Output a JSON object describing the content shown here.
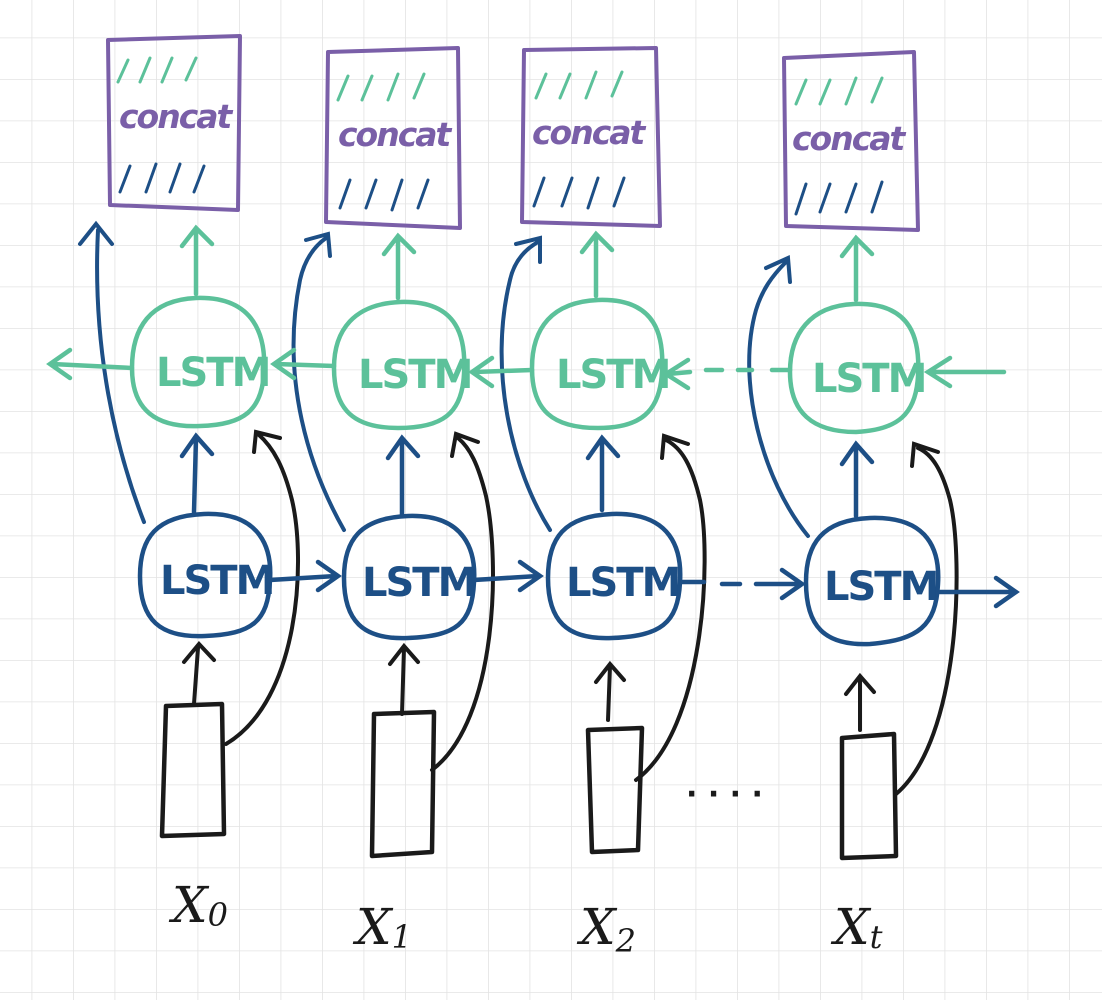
{
  "diagram": {
    "type": "bidirectional-lstm",
    "colors": {
      "forward": "#1d4f86",
      "backward": "#5cc19a",
      "concat": "#7a5fa8",
      "input": "#1a1a1a",
      "grid": "#e3e3e3"
    },
    "timesteps": [
      {
        "input_base": "X",
        "input_sub": "0",
        "forward_label": "LSTM",
        "backward_label": "LSTM",
        "concat_label": "concat"
      },
      {
        "input_base": "X",
        "input_sub": "1",
        "forward_label": "LSTM",
        "backward_label": "LSTM",
        "concat_label": "concat"
      },
      {
        "input_base": "X",
        "input_sub": "2",
        "forward_label": "LSTM",
        "backward_label": "LSTM",
        "concat_label": "concat"
      },
      {
        "input_base": "X",
        "input_sub": "t",
        "forward_label": "LSTM",
        "backward_label": "LSTM",
        "concat_label": "concat"
      }
    ],
    "ellipsis": "· · · ·"
  }
}
